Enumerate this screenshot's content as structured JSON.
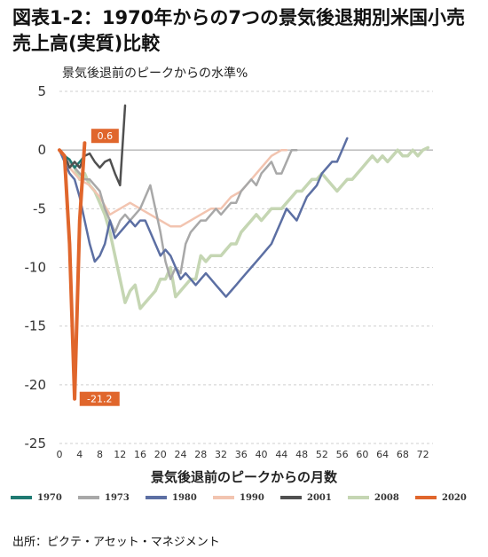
{
  "title": "図表1-2：1970年からの7つの景気後退期別米国小売売上高(実質)比較",
  "source": "出所：ピクテ・アセット・マネジメント",
  "chart_data": {
    "type": "line",
    "ylabel": "景気後退前のピークからの水準%",
    "xlabel": "景気後退前のピークからの月数",
    "ylim": [
      -25,
      5
    ],
    "xlim": [
      0,
      74
    ],
    "yticks": [
      5,
      0,
      -5,
      -10,
      -15,
      -20,
      -25
    ],
    "xticks": [
      0,
      4,
      8,
      12,
      16,
      20,
      24,
      28,
      32,
      36,
      40,
      44,
      48,
      52,
      56,
      60,
      64,
      68,
      72
    ],
    "grid": "horizontal-dashed",
    "legend_position": "bottom",
    "annotations": [
      {
        "text": "0.6",
        "x": 5,
        "y": 0.6,
        "series": "2020"
      },
      {
        "text": "-21.2",
        "x": 3,
        "y": -21.2,
        "series": "2020"
      }
    ],
    "series": [
      {
        "name": "2008",
        "color": "#c5d6b3",
        "x": [
          0,
          1,
          2,
          3,
          4,
          5,
          6,
          7,
          8,
          9,
          10,
          11,
          12,
          13,
          14,
          15,
          16,
          17,
          18,
          19,
          20,
          21,
          22,
          23,
          24,
          25,
          26,
          27,
          28,
          29,
          30,
          31,
          32,
          33,
          34,
          35,
          36,
          37,
          38,
          39,
          40,
          41,
          42,
          43,
          44,
          45,
          46,
          47,
          48,
          49,
          50,
          51,
          52,
          53,
          54,
          55,
          56,
          57,
          58,
          59,
          60,
          61,
          62,
          63,
          64,
          65,
          66,
          67,
          68,
          69,
          70,
          71,
          72,
          73
        ],
        "y": [
          0,
          -0.5,
          -1,
          -1.5,
          -2.5,
          -2,
          -3,
          -3.5,
          -4.5,
          -5.5,
          -7,
          -9,
          -11,
          -13,
          -12,
          -11.5,
          -13.5,
          -13,
          -12.5,
          -12,
          -11,
          -11,
          -10,
          -12.5,
          -12,
          -11.5,
          -11,
          -11,
          -9,
          -9.5,
          -9,
          -9,
          -9,
          -8.5,
          -8,
          -8,
          -7,
          -6.5,
          -6,
          -5.5,
          -6,
          -5.5,
          -5,
          -5,
          -5,
          -4.5,
          -4,
          -3.5,
          -3.5,
          -3,
          -2.5,
          -2.5,
          -2,
          -2.5,
          -3,
          -3.5,
          -3,
          -2.5,
          -2.5,
          -2,
          -1.5,
          -1,
          -0.5,
          -1,
          -0.5,
          -1,
          -0.5,
          0,
          -0.5,
          -0.5,
          0,
          -0.5,
          0,
          0.2
        ]
      },
      {
        "name": "1990",
        "color": "#f2c4b0",
        "x": [
          0,
          2,
          4,
          6,
          8,
          10,
          12,
          14,
          16,
          18,
          20,
          22,
          24,
          26,
          28,
          30,
          32,
          34,
          36,
          38,
          40,
          42,
          44,
          45
        ],
        "y": [
          0,
          -1.5,
          -2.5,
          -3,
          -4,
          -5.5,
          -5,
          -4.5,
          -5,
          -5.5,
          -6,
          -6.5,
          -6.5,
          -6,
          -5.5,
          -5,
          -5,
          -4,
          -3.5,
          -2.5,
          -1.5,
          -0.5,
          0,
          0
        ]
      },
      {
        "name": "1973",
        "color": "#a8a8a8",
        "x": [
          0,
          1,
          2,
          3,
          4,
          5,
          6,
          7,
          8,
          9,
          10,
          11,
          12,
          13,
          14,
          15,
          16,
          17,
          18,
          19,
          20,
          21,
          22,
          23,
          24,
          25,
          26,
          27,
          28,
          29,
          30,
          31,
          32,
          33,
          34,
          35,
          36,
          37,
          38,
          39,
          40,
          41,
          42,
          43,
          44,
          45,
          46,
          47
        ],
        "y": [
          0,
          -0.5,
          -1,
          -1.5,
          -2,
          -2.5,
          -2.5,
          -3,
          -3.5,
          -5,
          -6,
          -7,
          -6,
          -5.5,
          -6,
          -5.5,
          -5,
          -4,
          -3,
          -5,
          -7,
          -9.5,
          -11,
          -10,
          -10.5,
          -8,
          -7,
          -6.5,
          -6,
          -6,
          -5.5,
          -5,
          -5.5,
          -5,
          -4.5,
          -4.5,
          -3.5,
          -3,
          -2.5,
          -3,
          -2,
          -1.5,
          -1,
          -2,
          -2,
          -1,
          0,
          0
        ]
      },
      {
        "name": "1980",
        "color": "#5c6fa3",
        "x": [
          0,
          1,
          2,
          3,
          4,
          5,
          6,
          7,
          8,
          9,
          10,
          11,
          12,
          13,
          14,
          15,
          16,
          17,
          18,
          19,
          20,
          21,
          22,
          23,
          24,
          25,
          26,
          27,
          28,
          29,
          30,
          31,
          32,
          33,
          34,
          35,
          36,
          37,
          38,
          39,
          40,
          41,
          42,
          43,
          44,
          45,
          46,
          47,
          48,
          49,
          50,
          51,
          52,
          53,
          54,
          55,
          56,
          57
        ],
        "y": [
          0,
          -1,
          -2,
          -2.5,
          -4,
          -6,
          -8,
          -9.5,
          -9,
          -8,
          -6,
          -7.5,
          -7,
          -6.5,
          -6,
          -6.5,
          -6,
          -6,
          -7,
          -8,
          -9,
          -8.5,
          -9,
          -10,
          -11,
          -10.5,
          -11,
          -11.5,
          -11,
          -10.5,
          -11,
          -11.5,
          -12,
          -12.5,
          -12,
          -11.5,
          -11,
          -10.5,
          -10,
          -9.5,
          -9,
          -8.5,
          -8,
          -7,
          -6,
          -5,
          -5.5,
          -6,
          -5,
          -4,
          -3.5,
          -3,
          -2,
          -1.5,
          -1,
          -1,
          0,
          1
        ]
      },
      {
        "name": "1970",
        "color": "#1f7a72",
        "x": [
          0,
          1,
          2,
          3,
          4,
          5
        ],
        "y": [
          0,
          -0.5,
          -0.8,
          -1.5,
          -1,
          -0.5
        ]
      },
      {
        "name": "2001",
        "color": "#505050",
        "x": [
          0,
          1,
          2,
          3,
          4,
          5,
          6,
          7,
          8,
          9,
          10,
          11,
          12,
          13
        ],
        "y": [
          0,
          -0.5,
          -1.5,
          -1,
          -1.5,
          -0.5,
          -0.3,
          -1,
          -1.5,
          -1,
          -0.8,
          -2,
          -3,
          3.8
        ]
      },
      {
        "name": "2020",
        "color": "#e0662c",
        "x": [
          0,
          1,
          2,
          3,
          4,
          5
        ],
        "y": [
          0,
          -0.5,
          -8,
          -21.2,
          -6,
          0.6
        ]
      }
    ],
    "legend": [
      "1970",
      "1973",
      "1980",
      "1990",
      "2001",
      "2008",
      "2020"
    ]
  }
}
